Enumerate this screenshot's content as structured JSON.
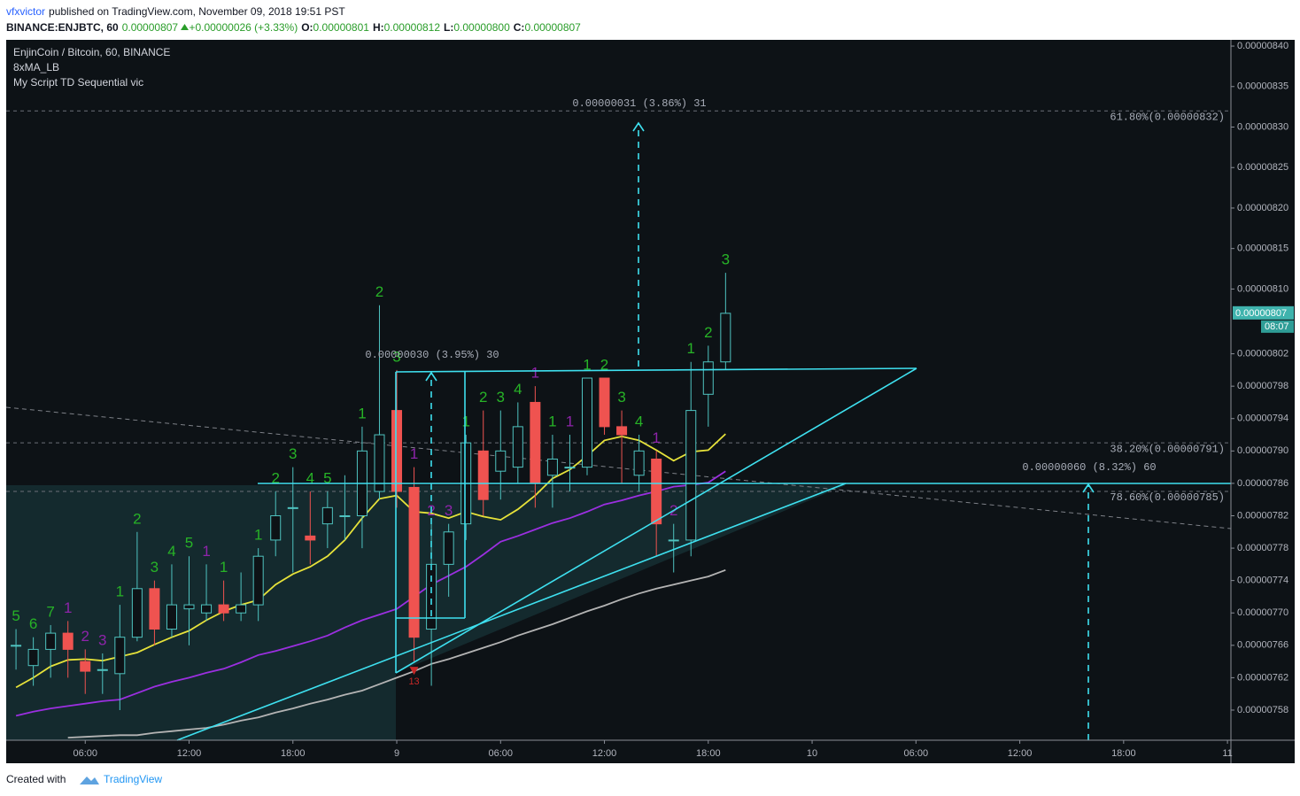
{
  "header": {
    "author": "vfxvictor",
    "published": "published on TradingView.com, November 09, 2018 19:51 PST",
    "symbol": "BINANCE:ENJBTC, 60",
    "price": "0.00000807",
    "change": "+0.00000026 (+3.33%)",
    "ohlc": [
      {
        "label": "O:",
        "value": "0.00000801"
      },
      {
        "label": "H:",
        "value": "0.00000812"
      },
      {
        "label": "L:",
        "value": "0.00000800"
      },
      {
        "label": "C:",
        "value": "0.00000807"
      }
    ]
  },
  "footer": {
    "created": "Created with",
    "brand": "TradingView"
  },
  "chart_data": {
    "type": "candlestick",
    "legend": [
      "EnjinCoin / Bitcoin, 60, BINANCE",
      "8xMA_LB",
      "My Script TD Sequential vic"
    ],
    "up_color": "#4fc3c0",
    "down_color": "#ef5350",
    "x": [
      "2018-11-08 02:00",
      "2018-11-08 03:00",
      "2018-11-08 04:00",
      "2018-11-08 05:00",
      "2018-11-08 06:00",
      "2018-11-08 07:00",
      "2018-11-08 08:00",
      "2018-11-08 09:00",
      "2018-11-08 10:00",
      "2018-11-08 11:00",
      "2018-11-08 12:00",
      "2018-11-08 13:00",
      "2018-11-08 14:00",
      "2018-11-08 15:00",
      "2018-11-08 16:00",
      "2018-11-08 17:00",
      "2018-11-08 18:00",
      "2018-11-08 19:00",
      "2018-11-08 20:00",
      "2018-11-08 21:00",
      "2018-11-08 22:00",
      "2018-11-08 23:00",
      "2018-11-09 00:00",
      "2018-11-09 01:00",
      "2018-11-09 02:00",
      "2018-11-09 03:00",
      "2018-11-09 04:00",
      "2018-11-09 05:00",
      "2018-11-09 06:00",
      "2018-11-09 07:00",
      "2018-11-09 08:00",
      "2018-11-09 09:00",
      "2018-11-09 10:00",
      "2018-11-09 11:00",
      "2018-11-09 12:00",
      "2018-11-09 13:00",
      "2018-11-09 14:00",
      "2018-11-09 15:00",
      "2018-11-09 16:00",
      "2018-11-09 17:00",
      "2018-11-09 18:00",
      "2018-11-09 19:00"
    ],
    "open": [
      7.66e-06,
      7.635e-06,
      7.655e-06,
      7.675e-06,
      7.64e-06,
      7.63e-06,
      7.625e-06,
      7.67e-06,
      7.73e-06,
      7.68e-06,
      7.705e-06,
      7.7e-06,
      7.71e-06,
      7.7e-06,
      7.71e-06,
      7.79e-06,
      7.83e-06,
      7.795e-06,
      7.81e-06,
      7.82e-06,
      7.82e-06,
      7.85e-06,
      7.95e-06,
      7.855e-06,
      7.68e-06,
      7.76e-06,
      7.81e-06,
      7.9e-06,
      7.875e-06,
      7.88e-06,
      7.96e-06,
      7.87e-06,
      7.88e-06,
      7.88e-06,
      7.99e-06,
      7.93e-06,
      7.87e-06,
      7.89e-06,
      7.79e-06,
      7.79e-06,
      7.97e-06,
      8.01e-06
    ],
    "high": [
      7.68e-06,
      7.67e-06,
      7.685e-06,
      7.69e-06,
      7.655e-06,
      7.65e-06,
      7.71e-06,
      7.8e-06,
      7.74e-06,
      7.76e-06,
      7.77e-06,
      7.76e-06,
      7.74e-06,
      7.75e-06,
      7.78e-06,
      7.85e-06,
      7.88e-06,
      7.85e-06,
      7.85e-06,
      7.87e-06,
      7.93e-06,
      8.08e-06,
      8e-06,
      7.88e-06,
      7.81e-06,
      7.81e-06,
      7.92e-06,
      7.95e-06,
      7.95e-06,
      7.96e-06,
      7.98e-06,
      7.92e-06,
      7.92e-06,
      7.99e-06,
      7.99e-06,
      7.95e-06,
      7.92e-06,
      7.9e-06,
      7.81e-06,
      8.01e-06,
      8.03e-06,
      8.12e-06
    ],
    "low": [
      7.63e-06,
      7.61e-06,
      7.62e-06,
      7.62e-06,
      7.6e-06,
      7.6e-06,
      7.58e-06,
      7.665e-06,
      7.66e-06,
      7.67e-06,
      7.66e-06,
      7.69e-06,
      7.69e-06,
      7.69e-06,
      7.69e-06,
      7.77e-06,
      7.75e-06,
      7.76e-06,
      7.78e-06,
      7.79e-06,
      7.78e-06,
      7.84e-06,
      7.83e-06,
      7.64e-06,
      7.61e-06,
      7.72e-06,
      7.79e-06,
      7.82e-06,
      7.84e-06,
      7.86e-06,
      7.83e-06,
      7.83e-06,
      7.85e-06,
      7.87e-06,
      7.92e-06,
      7.86e-06,
      7.85e-06,
      7.77e-06,
      7.75e-06,
      7.77e-06,
      7.93e-06,
      8e-06
    ],
    "close": [
      7.66e-06,
      7.655e-06,
      7.675e-06,
      7.655e-06,
      7.628e-06,
      7.63e-06,
      7.67e-06,
      7.73e-06,
      7.68e-06,
      7.71e-06,
      7.71e-06,
      7.71e-06,
      7.7e-06,
      7.71e-06,
      7.77e-06,
      7.82e-06,
      7.83e-06,
      7.79e-06,
      7.83e-06,
      7.82e-06,
      7.9e-06,
      7.92e-06,
      7.85e-06,
      7.67e-06,
      7.76e-06,
      7.8e-06,
      7.91e-06,
      7.84e-06,
      7.9e-06,
      7.93e-06,
      7.86e-06,
      7.89e-06,
      7.88e-06,
      7.99e-06,
      7.93e-06,
      7.92e-06,
      7.9e-06,
      7.81e-06,
      7.79e-06,
      7.95e-06,
      8.01e-06,
      8.07e-06
    ],
    "series": [
      {
        "color": "#e6e23a",
        "values": [
          7.608e-06,
          7.62e-06,
          7.634e-06,
          7.642e-06,
          7.643e-06,
          7.641e-06,
          7.646e-06,
          7.651e-06,
          7.661e-06,
          7.67e-06,
          7.678e-06,
          7.691e-06,
          7.702e-06,
          7.71e-06,
          7.716e-06,
          7.735e-06,
          7.748e-06,
          7.757e-06,
          7.77e-06,
          7.79e-06,
          7.817e-06,
          7.841e-06,
          7.845e-06,
          7.825e-06,
          7.823e-06,
          7.817e-06,
          7.825e-06,
          7.819e-06,
          7.815e-06,
          7.828e-06,
          7.845e-06,
          7.866e-06,
          7.877e-06,
          7.894e-06,
          7.913e-06,
          7.918e-06,
          7.913e-06,
          7.901e-06,
          7.888e-06,
          7.899e-06,
          7.901e-06,
          7.921e-06
        ]
      },
      {
        "color": "#9b2fe0",
        "values": [
          7.573e-06,
          7.578e-06,
          7.582e-06,
          7.585e-06,
          7.588e-06,
          7.591e-06,
          7.593e-06,
          7.601e-06,
          7.609e-06,
          7.615e-06,
          7.62e-06,
          7.626e-06,
          7.631e-06,
          7.639e-06,
          7.648e-06,
          7.653e-06,
          7.659e-06,
          7.665e-06,
          7.672e-06,
          7.682e-06,
          7.691e-06,
          7.698e-06,
          7.705e-06,
          7.72e-06,
          7.735e-06,
          7.746e-06,
          7.757e-06,
          7.772e-06,
          7.788e-06,
          7.795e-06,
          7.803e-06,
          7.811e-06,
          7.817e-06,
          7.825e-06,
          7.834e-06,
          7.839e-06,
          7.845e-06,
          7.85e-06,
          7.856e-06,
          7.858e-06,
          7.861e-06,
          7.875e-06
        ]
      },
      {
        "color": "#b4b4b4",
        "values": [
          null,
          null,
          null,
          7.546e-06,
          7.547e-06,
          7.548e-06,
          7.549e-06,
          7.549e-06,
          7.552e-06,
          7.554e-06,
          7.556e-06,
          7.558e-06,
          7.562e-06,
          7.567e-06,
          7.571e-06,
          7.577e-06,
          7.582e-06,
          7.588e-06,
          7.593e-06,
          7.599e-06,
          7.604e-06,
          7.612e-06,
          7.62e-06,
          7.628e-06,
          7.637e-06,
          7.643e-06,
          7.65e-06,
          7.657e-06,
          7.664e-06,
          7.672e-06,
          7.679e-06,
          7.686e-06,
          7.694e-06,
          7.702e-06,
          7.709e-06,
          7.717e-06,
          7.724e-06,
          7.73e-06,
          7.735e-06,
          7.74e-06,
          7.745e-06,
          7.753e-06
        ]
      }
    ],
    "td_sequence": [
      {
        "label": 5,
        "color": "#27b327"
      },
      {
        "label": 6,
        "color": "#27b327"
      },
      {
        "label": 7,
        "color": "#27b327"
      },
      {
        "label": 1,
        "color": "#8e24aa"
      },
      {
        "label": 2,
        "color": "#8e24aa"
      },
      {
        "label": 3,
        "color": "#8e24aa"
      },
      {
        "label": 1,
        "color": "#27b327"
      },
      {
        "label": 2,
        "color": "#27b327"
      },
      {
        "label": 3,
        "color": "#27b327"
      },
      {
        "label": 4,
        "color": "#27b327"
      },
      {
        "label": 5,
        "color": "#27b327"
      },
      {
        "label": 1,
        "color": "#8e24aa"
      },
      {
        "label": 1,
        "color": "#27b327"
      },
      null,
      {
        "label": 1,
        "color": "#27b327"
      },
      {
        "label": 2,
        "color": "#27b327"
      },
      {
        "label": 3,
        "color": "#27b327"
      },
      {
        "label": 4,
        "color": "#27b327"
      },
      {
        "label": 5,
        "color": "#27b327"
      },
      null,
      {
        "label": 1,
        "color": "#27b327"
      },
      {
        "label": 2,
        "color": "#27b327"
      },
      {
        "label": 3,
        "color": "#27b327"
      },
      {
        "label": 1,
        "color": "#8e24aa",
        "signal": 13
      },
      {
        "label": 2,
        "color": "#8e24aa"
      },
      {
        "label": 3,
        "color": "#8e24aa"
      },
      {
        "label": 1,
        "color": "#27b327"
      },
      {
        "label": 2,
        "color": "#27b327"
      },
      {
        "label": 3,
        "color": "#27b327"
      },
      {
        "label": 4,
        "color": "#27b327"
      },
      {
        "label": 1,
        "color": "#8e24aa"
      },
      {
        "label": 1,
        "color": "#27b327"
      },
      {
        "label": 1,
        "color": "#8e24aa"
      },
      {
        "label": 1,
        "color": "#27b327"
      },
      {
        "label": 2,
        "color": "#27b327"
      },
      {
        "label": 3,
        "color": "#27b327"
      },
      {
        "label": 4,
        "color": "#27b327"
      },
      {
        "label": 1,
        "color": "#8e24aa"
      },
      {
        "label": 2,
        "color": "#8e24aa"
      },
      {
        "label": 1,
        "color": "#27b327"
      },
      {
        "label": 2,
        "color": "#27b327"
      },
      {
        "label": 3,
        "color": "#27b327"
      }
    ],
    "fib_levels": [
      {
        "value": 8.32e-06,
        "label": "61.80%(0.00000832)"
      },
      {
        "value": 7.91e-06,
        "label": "38.20%(0.00000791)"
      },
      {
        "value": 7.85e-06,
        "label": "78.60%(0.00000785)"
      }
    ],
    "measurements": [
      "0.00000031 (3.86%) 31",
      "0.00000030 (3.95%) 30",
      "0.00000060 (8.32%) 60"
    ],
    "last_price_label": "0.00000807",
    "countdown": "08:07",
    "xlim": [
      "2018-11-08 01:26",
      "2018-11-11 00:12"
    ],
    "xticks": [
      {
        "value": "2018-11-08 06:00",
        "label": "06:00"
      },
      {
        "value": "2018-11-08 12:00",
        "label": "12:00"
      },
      {
        "value": "2018-11-08 18:00",
        "label": "18:00"
      },
      {
        "value": "2018-11-09 00:00",
        "label": "9"
      },
      {
        "value": "2018-11-09 06:00",
        "label": "06:00"
      },
      {
        "value": "2018-11-09 12:00",
        "label": "12:00"
      },
      {
        "value": "2018-11-09 18:00",
        "label": "18:00"
      },
      {
        "value": "2018-11-10 00:00",
        "label": "10"
      },
      {
        "value": "2018-11-10 06:00",
        "label": "06:00"
      },
      {
        "value": "2018-11-10 12:00",
        "label": "12:00"
      },
      {
        "value": "2018-11-10 18:00",
        "label": "18:00"
      },
      {
        "value": "2018-11-11 00:00",
        "label": "11"
      }
    ],
    "ylim": [
      7.5428e-06,
      8.4077e-06
    ],
    "yticks": [
      {
        "value": 8.4e-06,
        "label": "0.00000840"
      },
      {
        "value": 8.35e-06,
        "label": "0.00000835"
      },
      {
        "value": 8.3e-06,
        "label": "0.00000830"
      },
      {
        "value": 8.25e-06,
        "label": "0.00000825"
      },
      {
        "value": 8.2e-06,
        "label": "0.00000820"
      },
      {
        "value": 8.15e-06,
        "label": "0.00000815"
      },
      {
        "value": 8.1e-06,
        "label": "0.00000810"
      },
      {
        "value": 8.02e-06,
        "label": "0.00000802"
      },
      {
        "value": 7.98e-06,
        "label": "0.00000798"
      },
      {
        "value": 7.94e-06,
        "label": "0.00000794"
      },
      {
        "value": 7.9e-06,
        "label": "0.00000790"
      },
      {
        "value": 7.86e-06,
        "label": "0.00000786"
      },
      {
        "value": 7.82e-06,
        "label": "0.00000782"
      },
      {
        "value": 7.78e-06,
        "label": "0.00000778"
      },
      {
        "value": 7.74e-06,
        "label": "0.00000774"
      },
      {
        "value": 7.7e-06,
        "label": "0.00000770"
      },
      {
        "value": 7.66e-06,
        "label": "0.00000766"
      },
      {
        "value": 7.62e-06,
        "label": "0.00000762"
      },
      {
        "value": 7.58e-06,
        "label": "0.00000758"
      }
    ],
    "grid": false
  }
}
